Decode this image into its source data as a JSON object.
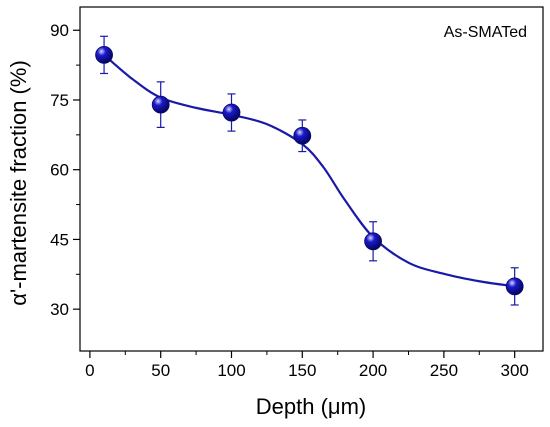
{
  "chart_data": {
    "type": "scatter",
    "title": "",
    "xlabel": "Depth (μm)",
    "ylabel": "α'-martensite fraction (%)",
    "annotation": "As-SMATed",
    "xlim": [
      -7,
      320
    ],
    "ylim": [
      21,
      95
    ],
    "xticks": [
      0,
      50,
      100,
      150,
      200,
      250,
      300
    ],
    "yticks": [
      30,
      45,
      60,
      75,
      90
    ],
    "grid": false,
    "legend": "none",
    "series": [
      {
        "x": [
          10,
          50,
          100,
          150,
          200,
          300
        ],
        "y": [
          84.7,
          74.0,
          72.3,
          67.3,
          44.6,
          34.9
        ],
        "err": [
          4.0,
          4.9,
          4.0,
          3.4,
          4.2,
          4.0
        ]
      }
    ],
    "fit_curve": {
      "x": [
        10,
        30,
        50,
        75,
        100,
        125,
        150,
        165,
        180,
        200,
        225,
        250,
        275,
        300
      ],
      "y": [
        84.7,
        79.5,
        75.5,
        73.3,
        71.8,
        69.8,
        65.5,
        60.5,
        53.5,
        45.5,
        40.0,
        37.6,
        36.0,
        34.9
      ]
    },
    "colors": {
      "marker": "#1a1acc",
      "line": "#1a1aa8",
      "errorbar": "#1a1aa8"
    }
  }
}
